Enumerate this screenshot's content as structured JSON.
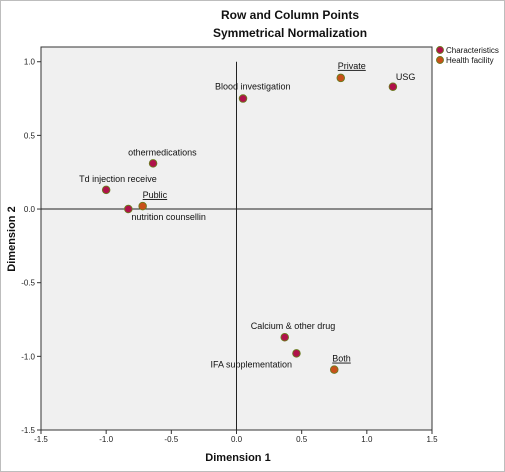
{
  "chart_data": {
    "type": "scatter",
    "title": "Row and Column Points",
    "subtitle": "Symmetrical Normalization",
    "xlabel": "Dimension 1",
    "ylabel": "Dimension 2",
    "xlim": [
      -1.5,
      1.5
    ],
    "ylim": [
      -1.5,
      1.1
    ],
    "xticks": [
      "-1.5",
      "-1.0",
      "-0.5",
      "0.0",
      "0.5",
      "1.0",
      "1.5"
    ],
    "yticks": [
      "1.0",
      "0.5",
      "0.0",
      "-0.5",
      "-1.0",
      "-1.5"
    ],
    "grid": false,
    "legend_position": "top-right",
    "series": [
      {
        "name": "Characteristics",
        "color": "#b0124a",
        "points": [
          {
            "label": "Blood investigation",
            "x": 0.05,
            "y": 0.75
          },
          {
            "label": "USG",
            "x": 1.2,
            "y": 0.83
          },
          {
            "label": "othermedications",
            "x": -0.64,
            "y": 0.31
          },
          {
            "label": "Td injection receive",
            "x": -1.0,
            "y": 0.13
          },
          {
            "label": "nutrition counsellin",
            "x": -0.83,
            "y": 0.0
          },
          {
            "label": "Calcium & other drug",
            "x": 0.37,
            "y": -0.87
          },
          {
            "label": "IFA supplementation",
            "x": 0.46,
            "y": -0.98
          }
        ]
      },
      {
        "name": "Health facility",
        "color": "#c8501a",
        "points": [
          {
            "label": "Private",
            "x": 0.8,
            "y": 0.89
          },
          {
            "label": "Public",
            "x": -0.72,
            "y": 0.02
          },
          {
            "label": "Both",
            "x": 0.75,
            "y": -1.09
          }
        ]
      }
    ]
  }
}
